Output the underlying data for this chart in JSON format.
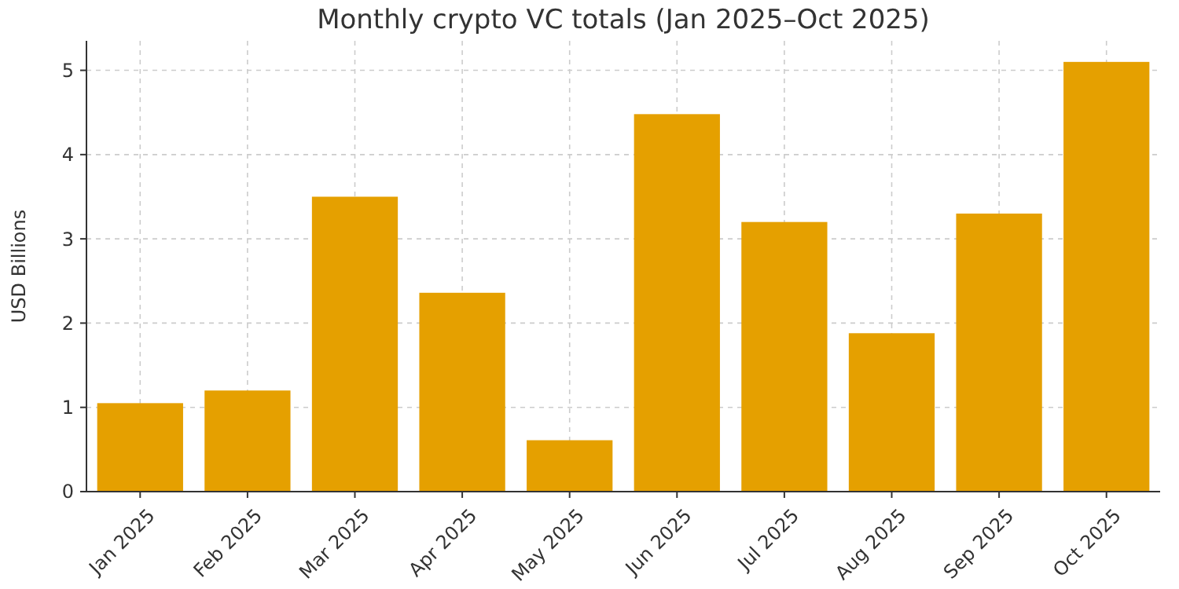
{
  "chart_data": {
    "type": "bar",
    "title": "Monthly crypto VC totals (Jan 2025–Oct 2025)",
    "ylabel": "USD Billions",
    "categories": [
      "Jan 2025",
      "Feb 2025",
      "Mar 2025",
      "Apr 2025",
      "May 2025",
      "Jun 2025",
      "Jul 2025",
      "Aug 2025",
      "Sep 2025",
      "Oct 2025"
    ],
    "values": [
      1.05,
      1.2,
      3.5,
      2.36,
      0.61,
      4.48,
      3.2,
      1.88,
      3.3,
      5.1
    ],
    "color": "#e5a000",
    "ylim": [
      0,
      5.35
    ],
    "yticks": [
      0,
      1,
      2,
      3,
      4,
      5
    ],
    "grid": true
  }
}
